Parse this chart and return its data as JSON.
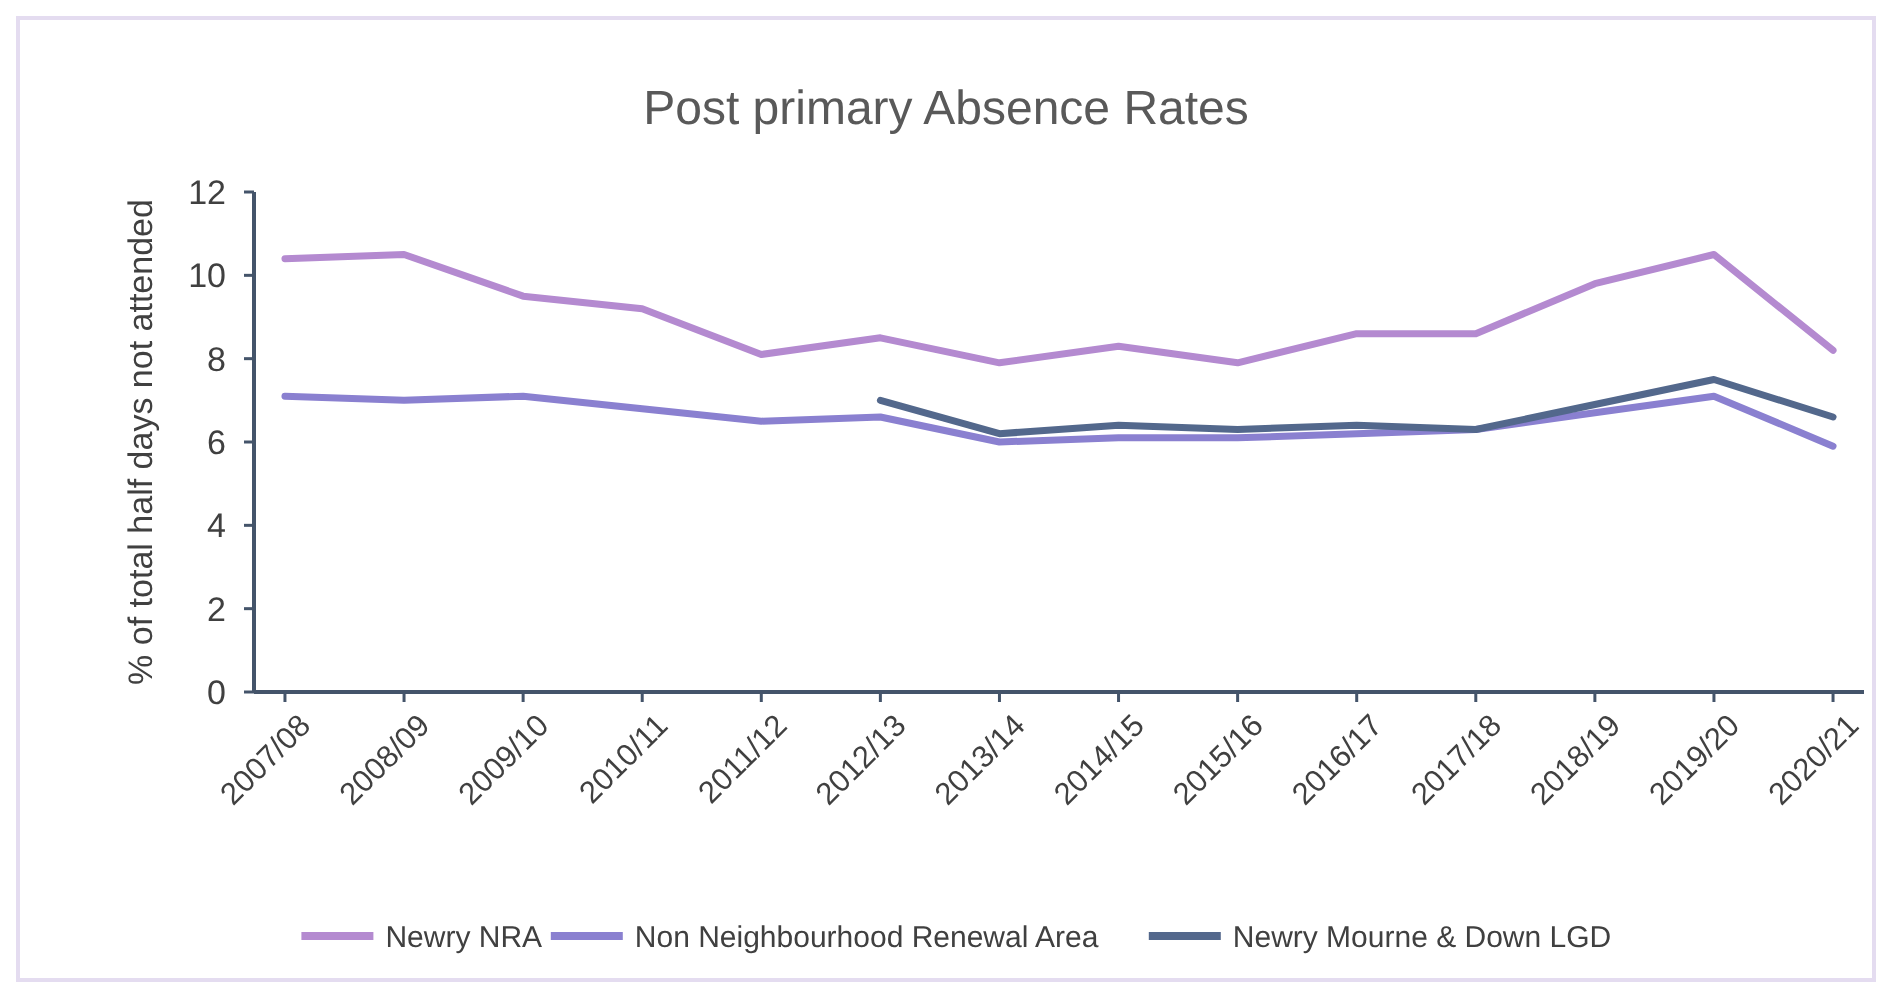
{
  "chart_data": {
    "type": "line",
    "title": "Post primary Absence Rates",
    "ylabel": "% of total half days not attended",
    "categories": [
      "2007/08",
      "2008/09",
      "2009/10",
      "2010/11",
      "2011/12",
      "2012/13",
      "2013/14",
      "2014/15",
      "2015/16",
      "2016/17",
      "2017/18",
      "2018/19",
      "2019/20",
      "2020/21"
    ],
    "series": [
      {
        "name": "Newry NRA",
        "color": "#b48ad0",
        "values": [
          10.4,
          10.5,
          9.5,
          9.2,
          8.1,
          8.5,
          7.9,
          8.3,
          7.9,
          8.6,
          8.6,
          9.8,
          10.5,
          8.2
        ]
      },
      {
        "name": "Non Neighbourhood Renewal Area",
        "color": "#8a80d0",
        "values": [
          7.1,
          7.0,
          7.1,
          6.8,
          6.5,
          6.6,
          6.0,
          6.1,
          6.1,
          6.2,
          6.3,
          6.7,
          7.1,
          5.9
        ]
      },
      {
        "name": "Newry Mourne & Down LGD",
        "color": "#53688c",
        "values": [
          null,
          null,
          null,
          null,
          null,
          7.0,
          6.2,
          6.4,
          6.3,
          6.4,
          6.3,
          6.9,
          7.5,
          6.6
        ]
      }
    ],
    "ylim": [
      0,
      12
    ],
    "yticks": [
      0,
      2,
      4,
      6,
      8,
      10,
      12
    ],
    "grid": false,
    "legend": "bottom",
    "marker": "none",
    "line_style": "solid"
  }
}
